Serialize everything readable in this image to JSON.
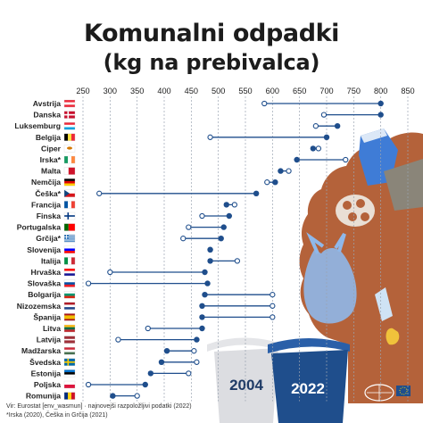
{
  "title": "Komunalni odpadki",
  "subtitle": "(kg na prebivalca)",
  "source": "Vir: Eurostat [env_wasmun] · najnovejši razpoložljivi podatki (2022)",
  "footnote": "*Irska (2020), Češka in Grčija (2021)",
  "logo_text": "Evropski parlament",
  "colors": {
    "line": "#1f4e8c",
    "dot_2022": "#1f4e8c",
    "dot_2004_fill": "#ffffff",
    "grid": "#9aa4b1",
    "trash_brown": "#b4623a",
    "bin_2004": "#dcdde1",
    "bin_2022": "#1f4e8c"
  },
  "chart_data": {
    "type": "dumbbell",
    "title": "Komunalni odpadki",
    "subtitle": "(kg na prebivalca)",
    "x_ticks": [
      250,
      300,
      350,
      400,
      450,
      500,
      550,
      600,
      650,
      700,
      750,
      800,
      850
    ],
    "xlim": [
      250,
      850
    ],
    "grid": "vertical dashed",
    "series_labels": [
      "2004",
      "2022"
    ],
    "rows": [
      {
        "country": "Avstrija",
        "v2004": 585,
        "v2022": 800,
        "flag": "at"
      },
      {
        "country": "Danska",
        "v2004": 695,
        "v2022": 800,
        "flag": "dk"
      },
      {
        "country": "Luksemburg",
        "v2004": 680,
        "v2022": 720,
        "flag": "lu"
      },
      {
        "country": "Belgija",
        "v2004": 485,
        "v2022": 700,
        "flag": "be"
      },
      {
        "country": "Ciper",
        "v2004": 685,
        "v2022": 675,
        "flag": "cy"
      },
      {
        "country": "Irska*",
        "v2004": 735,
        "v2022": 645,
        "flag": "ie"
      },
      {
        "country": "Malta",
        "v2004": 630,
        "v2022": 615,
        "flag": "mt"
      },
      {
        "country": "Nemčija",
        "v2004": 590,
        "v2022": 605,
        "flag": "de"
      },
      {
        "country": "Češka*",
        "v2004": 280,
        "v2022": 570,
        "flag": "cz"
      },
      {
        "country": "Francija",
        "v2004": 530,
        "v2022": 515,
        "flag": "fr"
      },
      {
        "country": "Finska",
        "v2004": 470,
        "v2022": 520,
        "flag": "fi"
      },
      {
        "country": "Portugalska",
        "v2004": 445,
        "v2022": 510,
        "flag": "pt"
      },
      {
        "country": "Grčija*",
        "v2004": 435,
        "v2022": 505,
        "flag": "gr"
      },
      {
        "country": "Slovenija",
        "v2004": 485,
        "v2022": 485,
        "flag": "si"
      },
      {
        "country": "Italija",
        "v2004": 535,
        "v2022": 485,
        "flag": "it"
      },
      {
        "country": "Hrvaška",
        "v2004": 300,
        "v2022": 475,
        "flag": "hr"
      },
      {
        "country": "Slovaška",
        "v2004": 260,
        "v2022": 480,
        "flag": "sk"
      },
      {
        "country": "Bolgarija",
        "v2004": 600,
        "v2022": 475,
        "flag": "bg"
      },
      {
        "country": "Nizozemska",
        "v2004": 600,
        "v2022": 470,
        "flag": "nl"
      },
      {
        "country": "Španija",
        "v2004": 600,
        "v2022": 470,
        "flag": "es"
      },
      {
        "country": "Litva",
        "v2004": 370,
        "v2022": 470,
        "flag": "lt"
      },
      {
        "country": "Latvija",
        "v2004": 315,
        "v2022": 460,
        "flag": "lv"
      },
      {
        "country": "Madžarska",
        "v2004": 455,
        "v2022": 405,
        "flag": "hu"
      },
      {
        "country": "Švedska",
        "v2004": 460,
        "v2022": 395,
        "flag": "se"
      },
      {
        "country": "Estonija",
        "v2004": 445,
        "v2022": 375,
        "flag": "ee"
      },
      {
        "country": "Poljska",
        "v2004": 260,
        "v2022": 365,
        "flag": "pl"
      },
      {
        "country": "Romunija",
        "v2004": 350,
        "v2022": 305,
        "flag": "ro"
      }
    ]
  }
}
